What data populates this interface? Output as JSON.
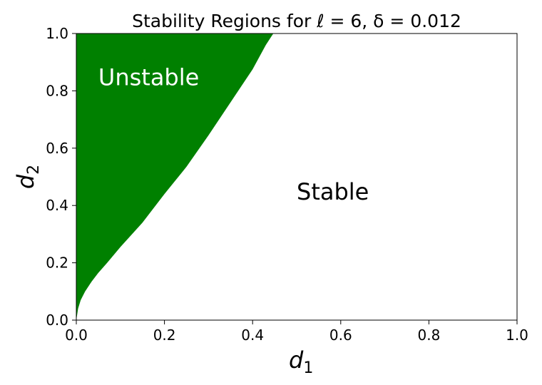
{
  "chart_data": {
    "type": "area",
    "title": "Stability Regions for ℓ = 6, δ = 0.012",
    "xlabel": {
      "base": "d",
      "sub": "1"
    },
    "ylabel": {
      "base": "d",
      "sub": "2"
    },
    "xlim": [
      0.0,
      1.0
    ],
    "ylim": [
      0.0,
      1.0
    ],
    "xticks": [
      "0.0",
      "0.2",
      "0.4",
      "0.6",
      "0.8",
      "1.0"
    ],
    "yticks": [
      "0.0",
      "0.2",
      "0.4",
      "0.6",
      "0.8",
      "1.0"
    ],
    "grid": false,
    "regions": [
      {
        "name": "Unstable",
        "color": "#008000",
        "label_color": "#ffffff",
        "label_at": [
          0.05,
          0.82
        ],
        "boundary": {
          "x": [
            0.0,
            0.004,
            0.01,
            0.02,
            0.035,
            0.05,
            0.07,
            0.1,
            0.15,
            0.2,
            0.25,
            0.3,
            0.35,
            0.4,
            0.43,
            0.447
          ],
          "y": [
            0.0,
            0.04,
            0.07,
            0.1,
            0.135,
            0.165,
            0.2,
            0.255,
            0.34,
            0.44,
            0.535,
            0.645,
            0.76,
            0.875,
            0.96,
            1.0
          ]
        }
      },
      {
        "name": "Stable",
        "color": "#ffffff",
        "label_color": "#000000",
        "label_at": [
          0.5,
          0.42
        ]
      }
    ]
  }
}
